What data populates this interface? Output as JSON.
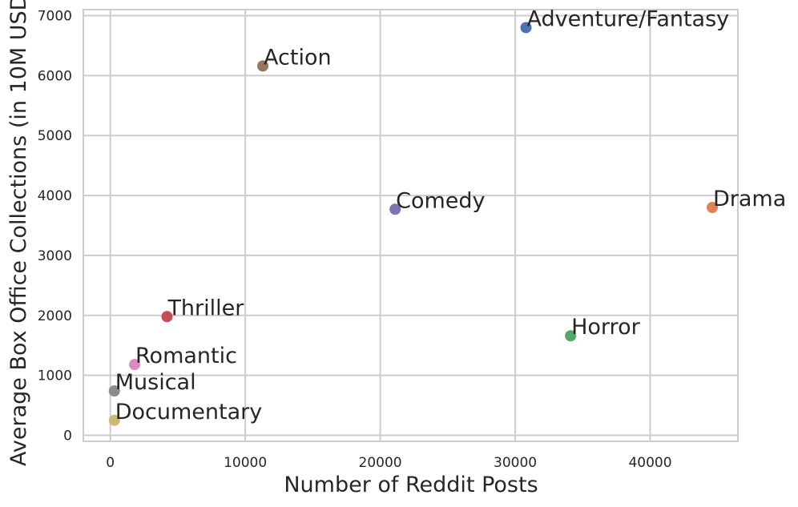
{
  "chart_data": {
    "type": "scatter",
    "title": "",
    "xlabel": "Number of Reddit Posts",
    "ylabel": "Average Box Office Collections (in 10M USD)",
    "xlim": [
      -2000,
      46500
    ],
    "ylim": [
      -100,
      7100
    ],
    "xticks": [
      0,
      10000,
      20000,
      30000,
      40000
    ],
    "yticks": [
      0,
      1000,
      2000,
      3000,
      4000,
      5000,
      6000,
      7000
    ],
    "grid": true,
    "legend": "none",
    "points": [
      {
        "label": "Adventure/Fantasy",
        "x": 30800,
        "y": 6800,
        "color": "#4c72b0"
      },
      {
        "label": "Drama",
        "x": 44600,
        "y": 3800,
        "color": "#dd8452"
      },
      {
        "label": "Horror",
        "x": 34100,
        "y": 1660,
        "color": "#55a868"
      },
      {
        "label": "Thriller",
        "x": 4200,
        "y": 1980,
        "color": "#c44e52"
      },
      {
        "label": "Comedy",
        "x": 21100,
        "y": 3770,
        "color": "#8172b3"
      },
      {
        "label": "Action",
        "x": 11300,
        "y": 6160,
        "color": "#937860"
      },
      {
        "label": "Romantic",
        "x": 1800,
        "y": 1180,
        "color": "#da8bc3"
      },
      {
        "label": "Musical",
        "x": 300,
        "y": 740,
        "color": "#8c8c8c"
      },
      {
        "label": "Documentary",
        "x": 300,
        "y": 250,
        "color": "#ccb974"
      }
    ]
  }
}
